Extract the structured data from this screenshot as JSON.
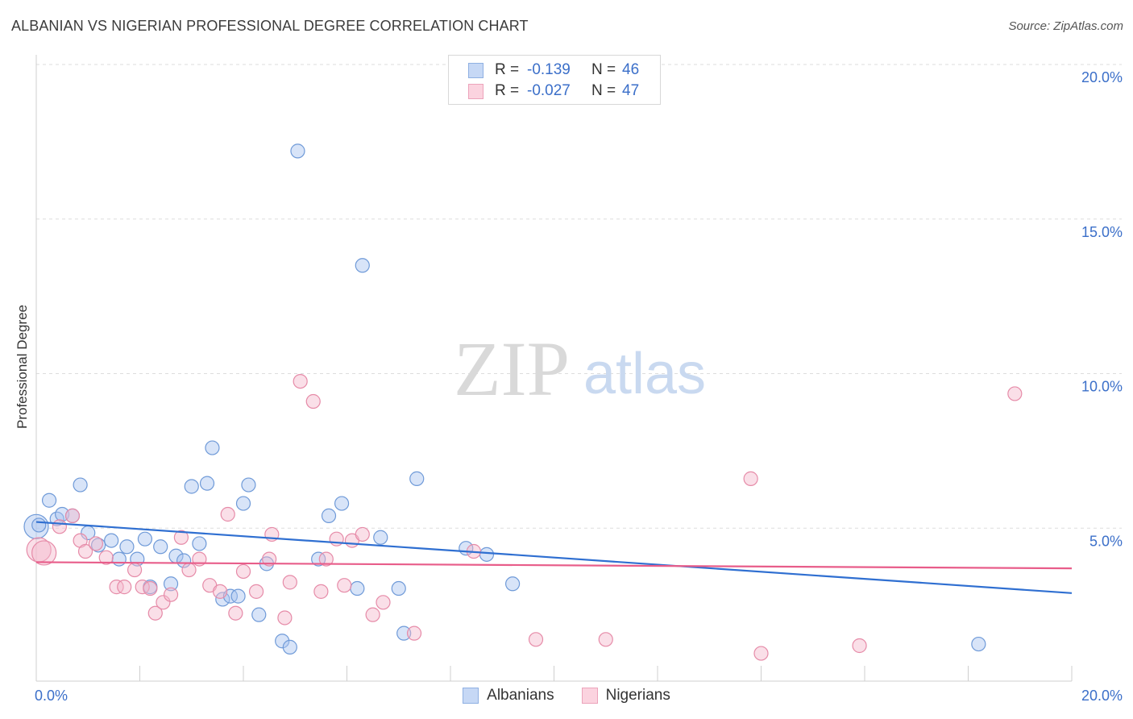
{
  "header": {
    "title": "ALBANIAN VS NIGERIAN PROFESSIONAL DEGREE CORRELATION CHART",
    "source": "Source: ZipAtlas.com"
  },
  "watermark": {
    "zip": "ZIP",
    "atlas": "atlas"
  },
  "legend": {
    "rows": [
      {
        "r_label": "R =",
        "r_value": "-0.139",
        "n_label": "N =",
        "n_value": "46",
        "color": "#a9c4ef"
      },
      {
        "r_label": "R =",
        "r_value": "-0.027",
        "n_label": "N =",
        "n_value": "47",
        "color": "#f5b8cb"
      }
    ]
  },
  "bottom_legend": {
    "items": [
      {
        "label": "Albanians",
        "color": "#a9c4ef"
      },
      {
        "label": "Nigerians",
        "color": "#f5b8cb"
      }
    ]
  },
  "chart_data": {
    "type": "scatter",
    "ylabel": "Professional Degree",
    "xlim": [
      0,
      20
    ],
    "ylim": [
      0,
      20
    ],
    "x_ticks": [
      "0.0%",
      "20.0%"
    ],
    "y_ticks": [
      {
        "value": 5,
        "label": "5.0%"
      },
      {
        "value": 10,
        "label": "10.0%"
      },
      {
        "value": 15,
        "label": "15.0%"
      },
      {
        "value": 20,
        "label": "20.0%"
      }
    ],
    "grid": true,
    "series": [
      {
        "name": "Albanians",
        "color": "#a9c4ef",
        "stroke": "#6f9ad8",
        "trend_color": "#2f6fd1",
        "trend": [
          [
            0,
            5.2
          ],
          [
            20,
            2.9
          ]
        ],
        "points": [
          [
            0.0,
            5.05
          ],
          [
            0.25,
            5.9
          ],
          [
            0.4,
            5.3
          ],
          [
            0.5,
            5.45
          ],
          [
            0.7,
            5.4
          ],
          [
            0.85,
            6.4
          ],
          [
            1.0,
            4.85
          ],
          [
            1.2,
            4.45
          ],
          [
            1.45,
            4.6
          ],
          [
            1.6,
            4.0
          ],
          [
            1.75,
            4.4
          ],
          [
            1.95,
            4.0
          ],
          [
            2.1,
            4.65
          ],
          [
            2.2,
            3.1
          ],
          [
            2.4,
            4.4
          ],
          [
            2.6,
            3.2
          ],
          [
            2.7,
            4.1
          ],
          [
            2.85,
            3.95
          ],
          [
            3.0,
            6.35
          ],
          [
            3.15,
            4.5
          ],
          [
            3.3,
            6.45
          ],
          [
            3.4,
            7.6
          ],
          [
            3.6,
            2.7
          ],
          [
            3.75,
            2.8
          ],
          [
            3.9,
            2.8
          ],
          [
            4.0,
            5.8
          ],
          [
            4.1,
            6.4
          ],
          [
            4.3,
            2.2
          ],
          [
            4.45,
            3.85
          ],
          [
            4.75,
            1.35
          ],
          [
            4.9,
            1.15
          ],
          [
            5.05,
            17.2
          ],
          [
            5.45,
            4.0
          ],
          [
            5.65,
            5.4
          ],
          [
            5.9,
            5.8
          ],
          [
            6.2,
            3.05
          ],
          [
            6.3,
            13.5
          ],
          [
            6.65,
            4.7
          ],
          [
            7.0,
            3.05
          ],
          [
            7.1,
            1.6
          ],
          [
            7.35,
            6.6
          ],
          [
            8.3,
            4.35
          ],
          [
            8.7,
            4.15
          ],
          [
            9.2,
            3.2
          ],
          [
            18.2,
            1.25
          ],
          [
            0.05,
            5.1
          ]
        ]
      },
      {
        "name": "Nigerians",
        "color": "#f5b8cb",
        "stroke": "#e68ba8",
        "trend_color": "#e85d8a",
        "trend": [
          [
            0,
            3.9
          ],
          [
            20,
            3.7
          ]
        ],
        "points": [
          [
            0.05,
            4.3
          ],
          [
            0.15,
            4.2
          ],
          [
            0.45,
            5.05
          ],
          [
            0.7,
            5.4
          ],
          [
            0.85,
            4.6
          ],
          [
            0.95,
            4.25
          ],
          [
            1.15,
            4.5
          ],
          [
            1.35,
            4.05
          ],
          [
            1.55,
            3.1
          ],
          [
            1.7,
            3.1
          ],
          [
            1.9,
            3.65
          ],
          [
            2.05,
            3.1
          ],
          [
            2.2,
            3.05
          ],
          [
            2.3,
            2.25
          ],
          [
            2.45,
            2.6
          ],
          [
            2.6,
            2.85
          ],
          [
            2.8,
            4.7
          ],
          [
            2.95,
            3.65
          ],
          [
            3.15,
            4.0
          ],
          [
            3.35,
            3.15
          ],
          [
            3.55,
            2.95
          ],
          [
            3.7,
            5.45
          ],
          [
            3.85,
            2.25
          ],
          [
            4.0,
            3.6
          ],
          [
            4.25,
            2.95
          ],
          [
            4.5,
            4.0
          ],
          [
            4.55,
            4.8
          ],
          [
            4.8,
            2.1
          ],
          [
            4.9,
            3.25
          ],
          [
            5.1,
            9.75
          ],
          [
            5.35,
            9.1
          ],
          [
            5.5,
            2.95
          ],
          [
            5.6,
            4.0
          ],
          [
            5.8,
            4.65
          ],
          [
            5.95,
            3.15
          ],
          [
            6.1,
            4.6
          ],
          [
            6.3,
            4.8
          ],
          [
            6.5,
            2.2
          ],
          [
            6.7,
            2.6
          ],
          [
            7.3,
            1.6
          ],
          [
            8.45,
            4.25
          ],
          [
            9.65,
            1.4
          ],
          [
            11.0,
            1.4
          ],
          [
            13.8,
            6.6
          ],
          [
            14.0,
            0.95
          ],
          [
            15.9,
            1.2
          ],
          [
            18.9,
            9.35
          ]
        ]
      }
    ]
  }
}
